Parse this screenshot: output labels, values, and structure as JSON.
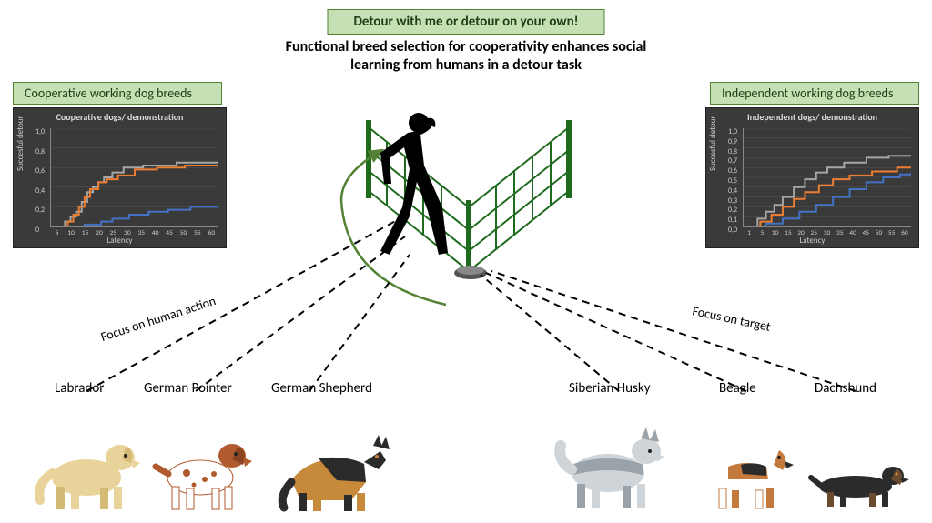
{
  "title_banner": "Detour with me or detour on your own!",
  "subtitle_line1": "Functional breed selection for cooperativity enhances social",
  "subtitle_line2": "learning from humans in a detour task",
  "groups": {
    "left": {
      "label": "Cooperative working dog breeds"
    },
    "right": {
      "label": "Independent working dog breeds"
    }
  },
  "focus": {
    "left": "Focus on human action",
    "right": "Focus on target"
  },
  "breeds": {
    "left": [
      "Labrador",
      "German Pointer",
      "German Shepherd"
    ],
    "right": [
      "Siberian Husky",
      "Beagle",
      "Dachshund"
    ]
  },
  "chart_left": {
    "type": "line-step",
    "title": "Cooperative dogs/\ndemonstration",
    "ylabel": "Succesful detour",
    "xlabel": "Latency",
    "ylim": [
      0,
      1
    ],
    "ytick_step": 0.2,
    "xlim": [
      0,
      60
    ],
    "xticks": [
      5,
      10,
      15,
      20,
      25,
      30,
      35,
      40,
      45,
      50,
      55,
      60
    ],
    "background_color": "#3a3a3a",
    "grid_color": "#555555",
    "series": [
      {
        "color": "#a6a6a6",
        "width": 2,
        "points": [
          [
            2,
            0
          ],
          [
            5,
            0.05
          ],
          [
            7,
            0.1
          ],
          [
            9,
            0.15
          ],
          [
            11,
            0.25
          ],
          [
            13,
            0.35
          ],
          [
            15,
            0.4
          ],
          [
            17,
            0.45
          ],
          [
            19,
            0.5
          ],
          [
            22,
            0.55
          ],
          [
            26,
            0.6
          ],
          [
            33,
            0.62
          ],
          [
            45,
            0.65
          ],
          [
            60,
            0.65
          ]
        ]
      },
      {
        "color": "#ed7d31",
        "width": 2,
        "points": [
          [
            3,
            0
          ],
          [
            6,
            0.05
          ],
          [
            8,
            0.12
          ],
          [
            10,
            0.2
          ],
          [
            12,
            0.3
          ],
          [
            14,
            0.38
          ],
          [
            17,
            0.45
          ],
          [
            20,
            0.48
          ],
          [
            24,
            0.52
          ],
          [
            30,
            0.58
          ],
          [
            38,
            0.6
          ],
          [
            48,
            0.62
          ],
          [
            60,
            0.63
          ]
        ]
      },
      {
        "color": "#4472c4",
        "width": 2,
        "points": [
          [
            5,
            0
          ],
          [
            12,
            0.02
          ],
          [
            18,
            0.05
          ],
          [
            22,
            0.08
          ],
          [
            28,
            0.12
          ],
          [
            35,
            0.15
          ],
          [
            42,
            0.17
          ],
          [
            50,
            0.2
          ],
          [
            60,
            0.22
          ]
        ]
      }
    ]
  },
  "chart_right": {
    "type": "line-step",
    "title": "Independent dogs/\ndemonstration",
    "ylabel": "Succesful detour",
    "xlabel": "Latency",
    "ylim": [
      0,
      1
    ],
    "ytick_step": 0.1,
    "xlim": [
      0,
      60
    ],
    "xticks": [
      1,
      5,
      10,
      15,
      20,
      25,
      30,
      35,
      40,
      45,
      50,
      55,
      60
    ],
    "background_color": "#3a3a3a",
    "grid_color": "#555555",
    "series": [
      {
        "color": "#a6a6a6",
        "width": 2,
        "points": [
          [
            2,
            0
          ],
          [
            5,
            0.08
          ],
          [
            8,
            0.15
          ],
          [
            11,
            0.22
          ],
          [
            14,
            0.3
          ],
          [
            18,
            0.4
          ],
          [
            22,
            0.48
          ],
          [
            26,
            0.55
          ],
          [
            30,
            0.6
          ],
          [
            36,
            0.65
          ],
          [
            44,
            0.7
          ],
          [
            52,
            0.72
          ],
          [
            60,
            0.73
          ]
        ]
      },
      {
        "color": "#ed7d31",
        "width": 2,
        "points": [
          [
            3,
            0
          ],
          [
            6,
            0.05
          ],
          [
            10,
            0.12
          ],
          [
            14,
            0.2
          ],
          [
            18,
            0.28
          ],
          [
            22,
            0.35
          ],
          [
            27,
            0.42
          ],
          [
            32,
            0.48
          ],
          [
            38,
            0.52
          ],
          [
            46,
            0.56
          ],
          [
            55,
            0.6
          ],
          [
            60,
            0.6
          ]
        ]
      },
      {
        "color": "#4472c4",
        "width": 2,
        "points": [
          [
            4,
            0
          ],
          [
            8,
            0.03
          ],
          [
            14,
            0.08
          ],
          [
            20,
            0.15
          ],
          [
            26,
            0.22
          ],
          [
            32,
            0.3
          ],
          [
            38,
            0.38
          ],
          [
            44,
            0.45
          ],
          [
            50,
            0.5
          ],
          [
            56,
            0.53
          ],
          [
            60,
            0.55
          ]
        ]
      }
    ]
  },
  "colors": {
    "banner_bg": "#c5e0b4",
    "banner_border": "#548235",
    "fence": "#1e6b1e",
    "person": "#000000",
    "dog_lab_body": "#e8d49a",
    "dog_lab_shade": "#d4ba74",
    "dog_gp_body": "#ffffff",
    "dog_gp_spots": "#b05a2e",
    "dog_gs_body": "#c78a3a",
    "dog_gs_dark": "#2b2b2b",
    "dog_husky_body": "#cfd4d8",
    "dog_husky_shade": "#9aa3aa",
    "dog_beagle_body": "#ffffff",
    "dog_beagle_brown": "#c47a3c",
    "dog_beagle_black": "#2b2b2b",
    "dog_dach_body": "#2b2b2b",
    "dog_dach_brown": "#6b4a2e"
  }
}
